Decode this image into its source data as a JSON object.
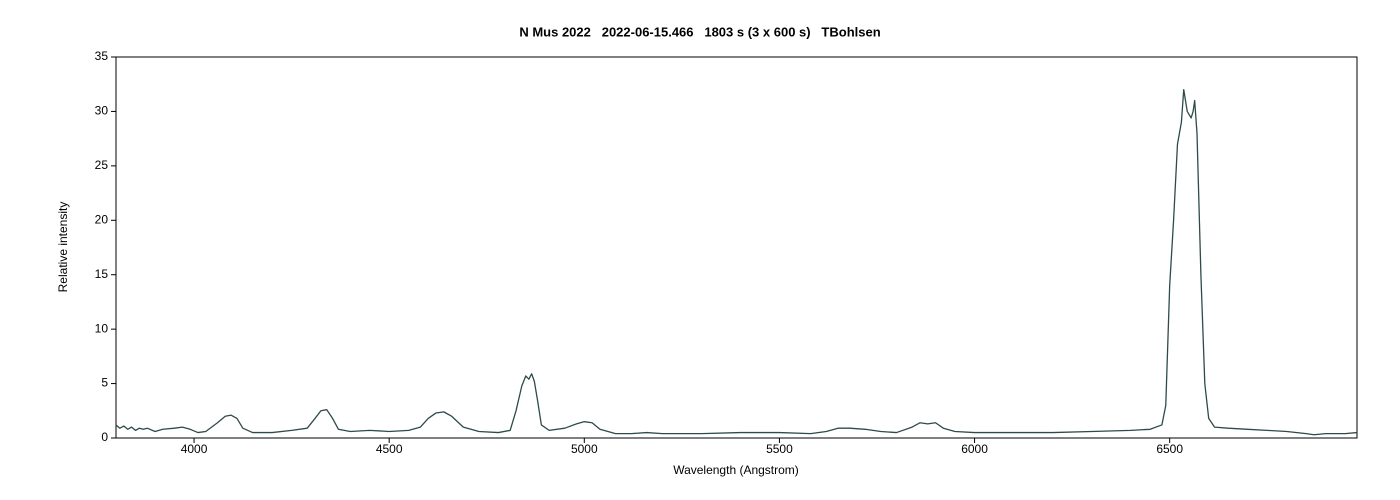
{
  "chart_data": {
    "type": "line",
    "title": "N Mus 2022   2022-06-15.466   1803 s (3 x 600 s)   TBohlsen",
    "x_label": "Wavelength (Angstrom)",
    "y_label": "Relative intensity",
    "color": "#2f4a4a",
    "xlim": [
      3800,
      6980
    ],
    "ylim": [
      0,
      35
    ],
    "xticks": [
      4000,
      4500,
      5000,
      5500,
      6000,
      6500
    ],
    "yticks": [
      0,
      5,
      10,
      15,
      20,
      25,
      30,
      35
    ],
    "x": [
      3800,
      3810,
      3820,
      3830,
      3840,
      3850,
      3860,
      3870,
      3880,
      3900,
      3920,
      3950,
      3970,
      3990,
      4010,
      4030,
      4060,
      4080,
      4095,
      4110,
      4125,
      4150,
      4200,
      4250,
      4290,
      4310,
      4325,
      4340,
      4355,
      4370,
      4400,
      4450,
      4500,
      4550,
      4580,
      4600,
      4620,
      4640,
      4660,
      4690,
      4730,
      4780,
      4810,
      4825,
      4840,
      4850,
      4858,
      4865,
      4872,
      4880,
      4890,
      4910,
      4950,
      4980,
      5000,
      5020,
      5040,
      5080,
      5120,
      5160,
      5200,
      5300,
      5400,
      5500,
      5580,
      5620,
      5650,
      5680,
      5720,
      5760,
      5800,
      5840,
      5860,
      5880,
      5900,
      5920,
      5950,
      6000,
      6100,
      6200,
      6300,
      6400,
      6450,
      6480,
      6490,
      6500,
      6510,
      6520,
      6530,
      6536,
      6545,
      6555,
      6560,
      6564,
      6570,
      6580,
      6590,
      6600,
      6615,
      6650,
      6700,
      6750,
      6800,
      6850,
      6870,
      6900,
      6950,
      6980
    ],
    "values": [
      1.2,
      0.9,
      1.1,
      0.8,
      1.0,
      0.7,
      0.9,
      0.8,
      0.9,
      0.6,
      0.8,
      0.9,
      1.0,
      0.8,
      0.5,
      0.6,
      1.4,
      2.0,
      2.1,
      1.8,
      0.9,
      0.5,
      0.5,
      0.7,
      0.9,
      1.8,
      2.5,
      2.6,
      1.8,
      0.8,
      0.6,
      0.7,
      0.6,
      0.7,
      1.0,
      1.8,
      2.3,
      2.4,
      2.0,
      1.0,
      0.6,
      0.5,
      0.7,
      2.5,
      4.8,
      5.7,
      5.4,
      5.9,
      5.2,
      3.5,
      1.2,
      0.7,
      0.9,
      1.3,
      1.5,
      1.4,
      0.8,
      0.4,
      0.4,
      0.5,
      0.4,
      0.4,
      0.5,
      0.5,
      0.4,
      0.6,
      0.9,
      0.9,
      0.8,
      0.6,
      0.5,
      1.0,
      1.4,
      1.3,
      1.4,
      0.9,
      0.6,
      0.5,
      0.5,
      0.5,
      0.6,
      0.7,
      0.8,
      1.2,
      3,
      14,
      20,
      27,
      29,
      32,
      30,
      29.4,
      30,
      31,
      28,
      15,
      5,
      1.8,
      1.0,
      0.9,
      0.8,
      0.7,
      0.6,
      0.4,
      0.3,
      0.4,
      0.4,
      0.5
    ]
  }
}
